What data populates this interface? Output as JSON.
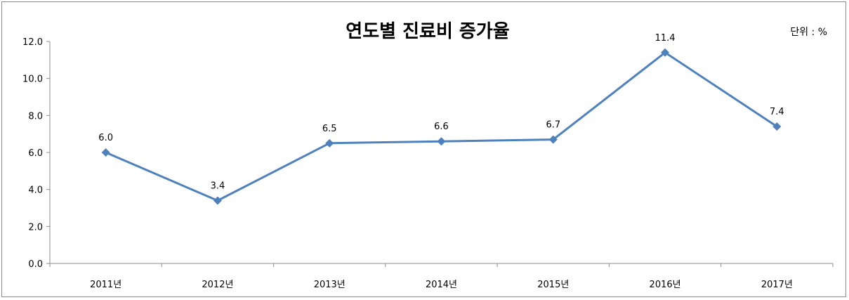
{
  "chart_data": {
    "type": "line",
    "title": "연도별 진료비 증가율",
    "unit_label": "단위 : %",
    "categories": [
      "2011년",
      "2012년",
      "2013년",
      "2014년",
      "2015년",
      "2016년",
      "2017년"
    ],
    "series": [
      {
        "values": [
          6.0,
          3.4,
          6.5,
          6.6,
          6.7,
          11.4,
          7.4
        ],
        "color": "#4F81BD",
        "marker": "diamond"
      }
    ],
    "data_labels": [
      "6.0",
      "3.4",
      "6.5",
      "6.6",
      "6.7",
      "11.4",
      "7.4"
    ],
    "ylim": [
      0,
      12
    ],
    "yticks": [
      "0.0",
      "2.0",
      "4.0",
      "6.0",
      "8.0",
      "10.0",
      "12.0"
    ],
    "grid": false,
    "legend": "none"
  }
}
